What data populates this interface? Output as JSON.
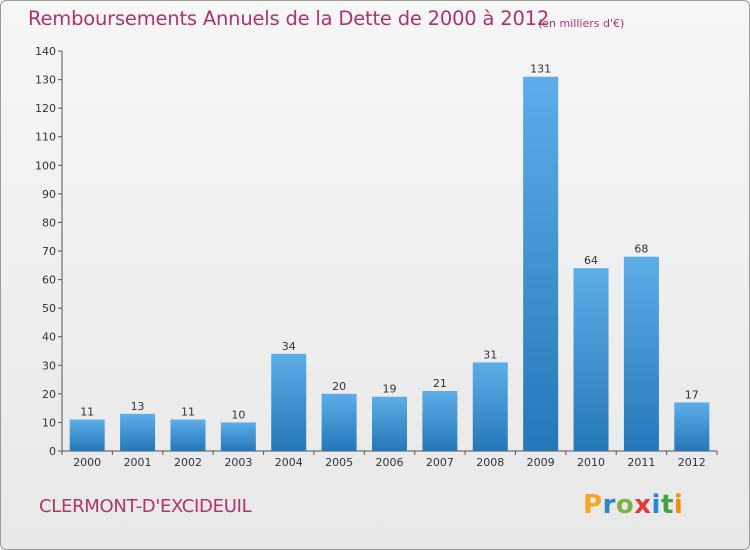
{
  "header": {
    "title": "Remboursements Annuels de la Dette de 2000 à 2012",
    "unit": "(en milliers d'€)"
  },
  "footer": {
    "commune": "CLERMONT-D'EXCIDEUIL",
    "logo_letters": [
      "P",
      "r",
      "o",
      "x",
      "i",
      "t",
      "i"
    ],
    "logo_colors": [
      "#f5a623",
      "#2e86c1",
      "#7cb342",
      "#e53935",
      "#1e88e5",
      "#43a047",
      "#fb8c00"
    ]
  },
  "colors": {
    "accent": "#b1336a",
    "bar_top": "#5dade8",
    "bar_bottom": "#2578b8"
  },
  "chart_data": {
    "type": "bar",
    "title": "Remboursements Annuels de la Dette de 2000 à 2012",
    "xlabel": "",
    "ylabel": "",
    "categories": [
      "2000",
      "2001",
      "2002",
      "2003",
      "2004",
      "2005",
      "2006",
      "2007",
      "2008",
      "2009",
      "2010",
      "2011",
      "2012"
    ],
    "values": [
      11,
      13,
      11,
      10,
      34,
      20,
      19,
      21,
      31,
      131,
      64,
      68,
      17
    ],
    "ylim": [
      0,
      140
    ],
    "yticks": [
      0,
      10,
      20,
      30,
      40,
      50,
      60,
      70,
      80,
      90,
      100,
      110,
      120,
      130,
      140
    ],
    "grid": false,
    "legend": "none"
  }
}
